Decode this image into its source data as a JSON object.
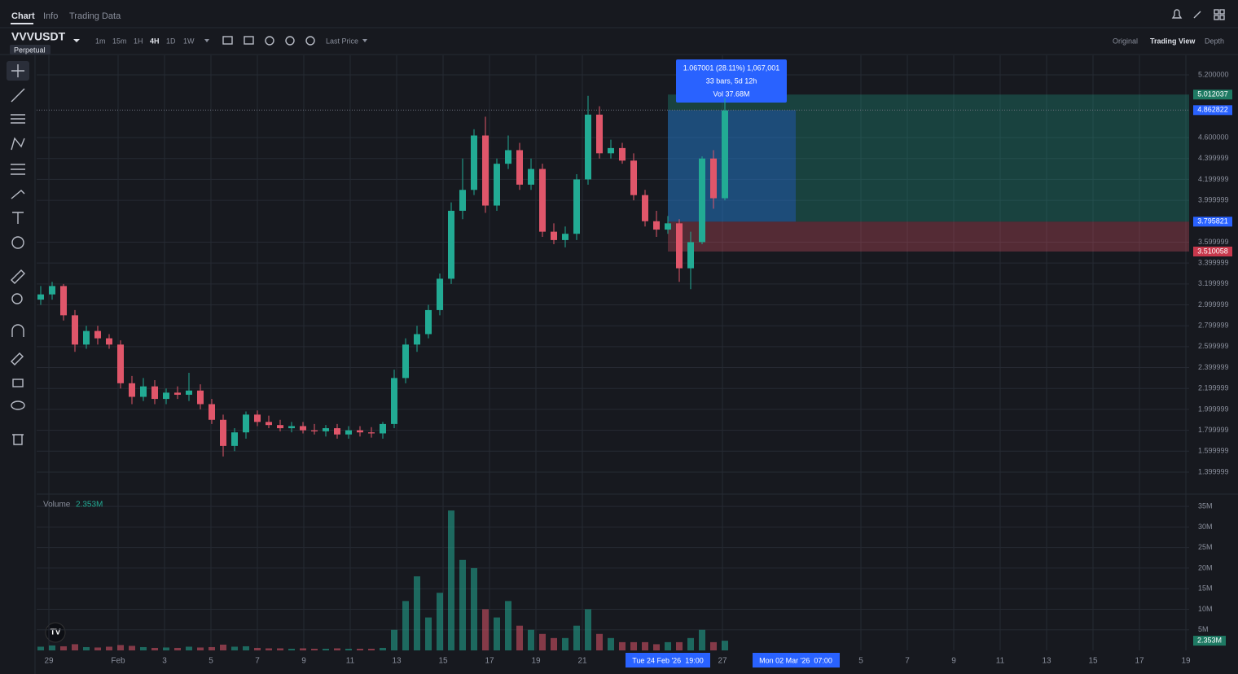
{
  "tabs": [
    "Chart",
    "Info",
    "Trading Data"
  ],
  "symbol": {
    "name": "VVVUSDT",
    "kind": "Perpetual"
  },
  "intervals": [
    "1m",
    "15m",
    "1H",
    "4H",
    "1D",
    "1W"
  ],
  "price_source": "Last Price",
  "views": [
    "Original",
    "Trading View",
    "Depth"
  ],
  "chart_data": {
    "type": "candlestick",
    "colors": {
      "up": "#22ab94",
      "down": "#e0566a"
    },
    "open": [
      3.05,
      3.1,
      3.18,
      2.9,
      2.62,
      2.75,
      2.68,
      2.62,
      2.25,
      2.12,
      2.22,
      2.1,
      2.16,
      2.14,
      2.18,
      2.05,
      1.9,
      1.65,
      1.78,
      1.95,
      1.88,
      1.85,
      1.82,
      1.84,
      1.8,
      1.79,
      1.82,
      1.76,
      1.8,
      1.78,
      1.77,
      1.86,
      2.3,
      2.62,
      2.72,
      2.95,
      3.25,
      3.9,
      4.1,
      4.62,
      3.95,
      4.35,
      4.48,
      4.15,
      4.3,
      3.7,
      3.62,
      3.68,
      4.2,
      4.82,
      4.45,
      4.5,
      4.38,
      4.05,
      3.8,
      3.72,
      3.78,
      3.35,
      3.6,
      4.4,
      4.02
    ],
    "high": [
      3.18,
      3.22,
      3.2,
      2.95,
      2.8,
      2.8,
      2.72,
      2.66,
      2.32,
      2.3,
      2.28,
      2.2,
      2.22,
      2.35,
      2.24,
      2.1,
      1.95,
      1.82,
      1.98,
      1.99,
      1.94,
      1.9,
      1.88,
      1.88,
      1.86,
      1.85,
      1.86,
      1.84,
      1.84,
      1.83,
      1.88,
      2.38,
      2.68,
      2.8,
      3.0,
      3.3,
      3.98,
      4.4,
      4.68,
      4.8,
      4.4,
      4.62,
      4.55,
      4.4,
      4.35,
      3.78,
      3.75,
      4.25,
      5.0,
      4.9,
      4.58,
      4.55,
      4.45,
      4.1,
      3.9,
      3.85,
      3.82,
      3.7,
      4.42,
      4.48,
      4.98
    ],
    "low": [
      3.0,
      3.05,
      2.85,
      2.55,
      2.58,
      2.62,
      2.58,
      2.2,
      2.05,
      2.08,
      2.05,
      2.05,
      2.1,
      2.08,
      2.0,
      1.86,
      1.55,
      1.6,
      1.72,
      1.84,
      1.82,
      1.79,
      1.78,
      1.77,
      1.76,
      1.74,
      1.72,
      1.72,
      1.74,
      1.73,
      1.72,
      1.82,
      2.25,
      2.55,
      2.68,
      2.9,
      3.2,
      3.82,
      4.05,
      3.88,
      3.9,
      4.3,
      4.1,
      4.1,
      3.65,
      3.58,
      3.55,
      3.62,
      4.15,
      4.4,
      4.4,
      4.35,
      4.0,
      3.75,
      3.65,
      3.68,
      3.22,
      3.15,
      3.58,
      3.92,
      4.0
    ],
    "close": [
      3.1,
      3.18,
      2.9,
      2.62,
      2.75,
      2.68,
      2.62,
      2.25,
      2.12,
      2.22,
      2.1,
      2.16,
      2.14,
      2.18,
      2.05,
      1.9,
      1.65,
      1.78,
      1.95,
      1.88,
      1.85,
      1.82,
      1.84,
      1.8,
      1.79,
      1.82,
      1.76,
      1.8,
      1.78,
      1.77,
      1.86,
      2.3,
      2.62,
      2.72,
      2.95,
      3.25,
      3.9,
      4.1,
      4.62,
      3.95,
      4.35,
      4.48,
      4.15,
      4.3,
      3.7,
      3.62,
      3.68,
      4.2,
      4.82,
      4.45,
      4.5,
      4.38,
      4.05,
      3.8,
      3.72,
      3.78,
      3.35,
      3.6,
      4.4,
      4.02,
      4.86
    ],
    "volume": [
      900000,
      1200000,
      1000000,
      1500000,
      800000,
      700000,
      900000,
      1300000,
      1100000,
      800000,
      600000,
      700000,
      600000,
      900000,
      700000,
      800000,
      1400000,
      900000,
      1000000,
      600000,
      500000,
      500000,
      400000,
      500000,
      400000,
      400000,
      500000,
      400000,
      400000,
      400000,
      600000,
      5000000,
      12000000,
      18000000,
      8000000,
      14000000,
      34000000,
      22000000,
      20000000,
      10000000,
      8000000,
      12000000,
      6000000,
      5000000,
      4000000,
      3000000,
      3000000,
      6000000,
      10000000,
      4000000,
      3000000,
      2000000,
      2000000,
      2000000,
      1500000,
      2000000,
      2000000,
      3000000,
      5000000,
      2000000,
      2353000
    ],
    "ylim": [
      1.205,
      5.387
    ],
    "yticks": [
      {
        "value": 5.2,
        "label": "5.200000"
      },
      {
        "value": 4.6,
        "label": "4.600000"
      },
      {
        "value": 4.4,
        "label": "4.399999"
      },
      {
        "value": 4.2,
        "label": "4.199999"
      },
      {
        "value": 4.0,
        "label": "3.999999"
      },
      {
        "value": 3.6,
        "label": "3.599999"
      },
      {
        "value": 3.4,
        "label": "3.399999"
      },
      {
        "value": 3.2,
        "label": "3.199999"
      },
      {
        "value": 3.0,
        "label": "2.999999"
      },
      {
        "value": 2.8,
        "label": "2.799999"
      },
      {
        "value": 2.6,
        "label": "2.599999"
      },
      {
        "value": 2.4,
        "label": "2.399999"
      },
      {
        "value": 2.2,
        "label": "2.199999"
      },
      {
        "value": 2.0,
        "label": "1.999999"
      },
      {
        "value": 1.8,
        "label": "1.799999"
      },
      {
        "value": 1.6,
        "label": "1.599999"
      },
      {
        "value": 1.4,
        "label": "1.399999"
      }
    ],
    "volume_ylim": [
      0,
      37000000
    ],
    "volume_yticks": [
      {
        "value": 35000000,
        "label": "35M"
      },
      {
        "value": 30000000,
        "label": "30M"
      },
      {
        "value": 25000000,
        "label": "25M"
      },
      {
        "value": 20000000,
        "label": "20M"
      },
      {
        "value": 15000000,
        "label": "15M"
      },
      {
        "value": 10000000,
        "label": "10M"
      },
      {
        "value": 5000000,
        "label": "5M"
      }
    ],
    "volume_title": "Volume",
    "volume_label": "2.353M",
    "xtick_labels": [
      "29",
      "Feb",
      "3",
      "5",
      "7",
      "9",
      "11",
      "13",
      "15",
      "17",
      "19",
      "21",
      "27",
      "5",
      "7",
      "9",
      "11",
      "13",
      "15",
      "17",
      "19"
    ],
    "last_price": 4.862822,
    "position": {
      "target": 5.012037,
      "entry": 3.795821,
      "stop": 3.510058
    },
    "measure": [
      "1.067001 (28.11%) 1,067,001",
      "33 bars, 5d 12h",
      "Vol 37.68M"
    ],
    "crosshair_dates": [
      "Tue 24 Feb '26  19:00",
      "Mon 02 Mar '26  07:00"
    ]
  }
}
